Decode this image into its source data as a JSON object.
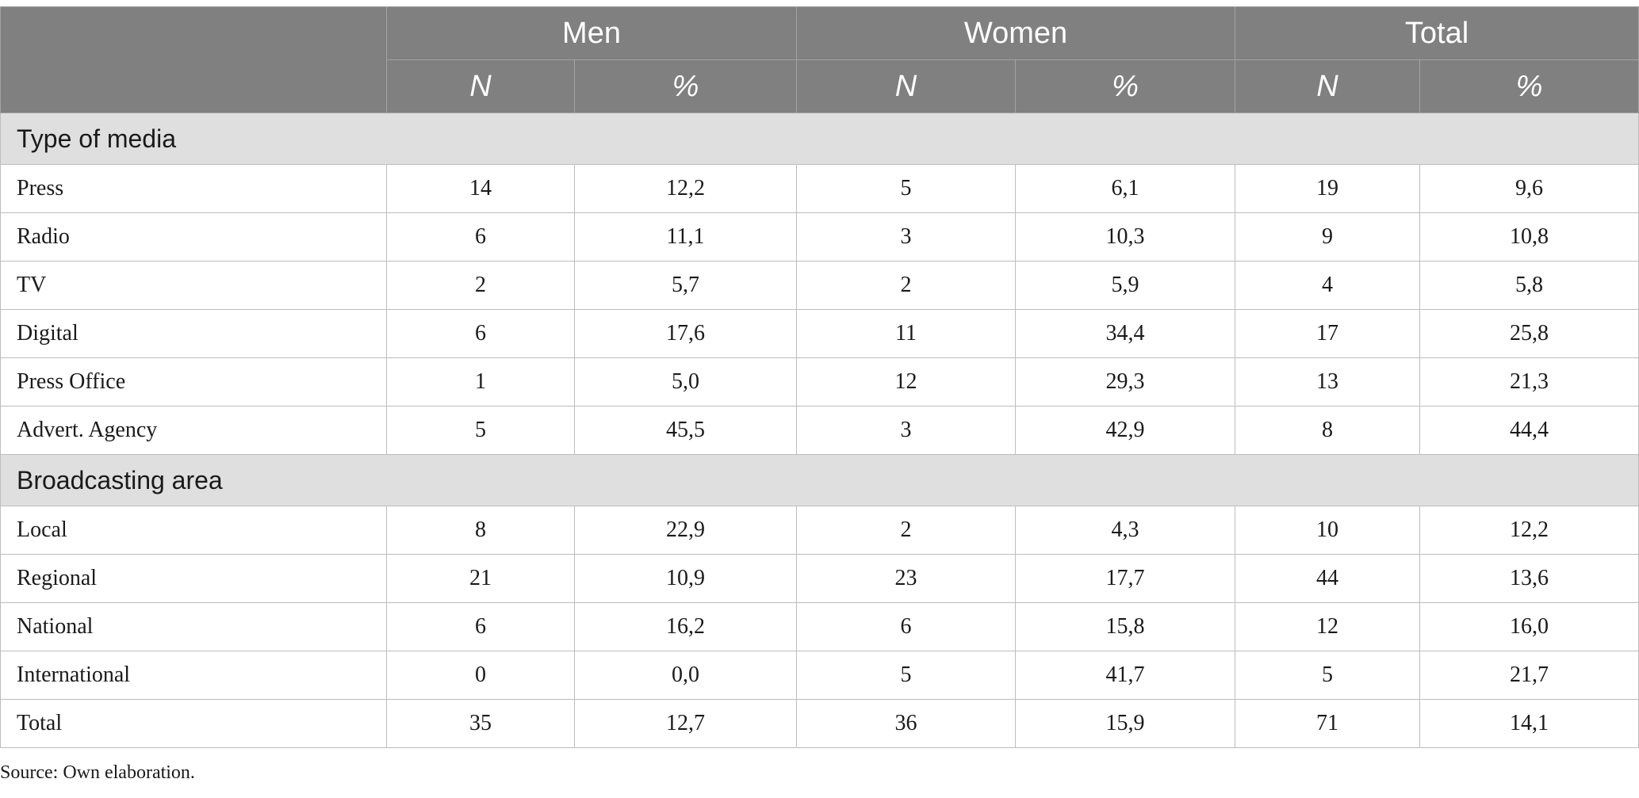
{
  "header": {
    "groups": [
      "Men",
      "Women",
      "Total"
    ],
    "subcolumns": [
      "N",
      "%",
      "N",
      "%",
      "N",
      "%"
    ]
  },
  "sections": [
    {
      "title": "Type of media",
      "rows": [
        {
          "label": "Press",
          "values": [
            "14",
            "12,2",
            "5",
            "6,1",
            "19",
            "9,6"
          ]
        },
        {
          "label": "Radio",
          "values": [
            "6",
            "11,1",
            "3",
            "10,3",
            "9",
            "10,8"
          ]
        },
        {
          "label": "TV",
          "values": [
            "2",
            "5,7",
            "2",
            "5,9",
            "4",
            "5,8"
          ]
        },
        {
          "label": "Digital",
          "values": [
            "6",
            "17,6",
            "11",
            "34,4",
            "17",
            "25,8"
          ]
        },
        {
          "label": "Press Office",
          "values": [
            "1",
            "5,0",
            "12",
            "29,3",
            "13",
            "21,3"
          ]
        },
        {
          "label": "Advert. Agency",
          "values": [
            "5",
            "45,5",
            "3",
            "42,9",
            "8",
            "44,4"
          ]
        }
      ]
    },
    {
      "title": "Broadcasting area",
      "rows": [
        {
          "label": "Local",
          "values": [
            "8",
            "22,9",
            "2",
            "4,3",
            "10",
            "12,2"
          ]
        },
        {
          "label": "Regional",
          "values": [
            "21",
            "10,9",
            "23",
            "17,7",
            "44",
            "13,6"
          ]
        },
        {
          "label": "National",
          "values": [
            "6",
            "16,2",
            "6",
            "15,8",
            "12",
            "16,0"
          ]
        },
        {
          "label": "International",
          "values": [
            "0",
            "0,0",
            "5",
            "41,7",
            "5",
            "21,7"
          ]
        },
        {
          "label": "Total",
          "values": [
            "35",
            "12,7",
            "36",
            "15,9",
            "71",
            "14,1"
          ]
        }
      ]
    }
  ],
  "source": "Source: Own elaboration."
}
